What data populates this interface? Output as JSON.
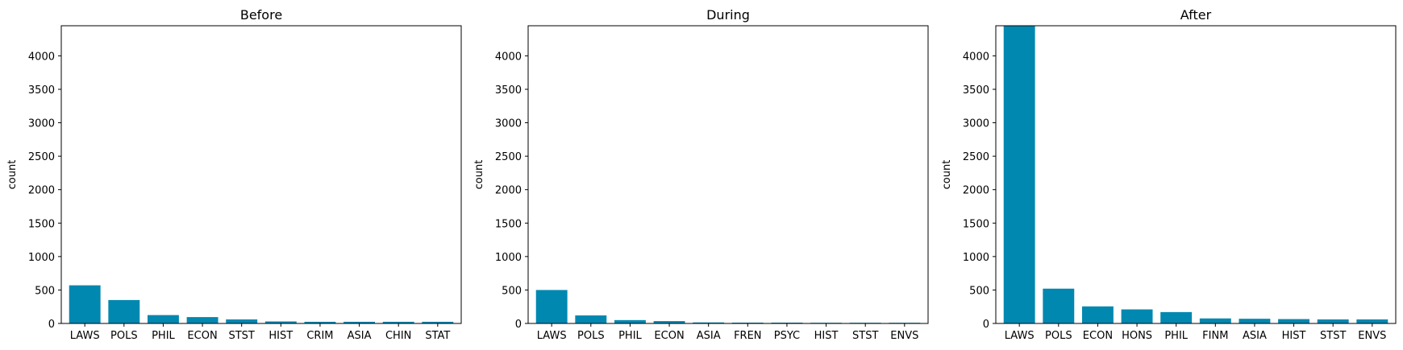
{
  "chart_data": [
    {
      "type": "bar",
      "title": "Before",
      "xlabel": "",
      "ylabel": "count",
      "ylim": [
        0,
        4450
      ],
      "yticks": [
        0,
        500,
        1000,
        1500,
        2000,
        2500,
        3000,
        3500,
        4000
      ],
      "categories": [
        "LAWS",
        "POLS",
        "PHIL",
        "ECON",
        "STST",
        "HIST",
        "CRIM",
        "ASIA",
        "CHIN",
        "STAT"
      ],
      "values": [
        570,
        350,
        125,
        95,
        60,
        30,
        25,
        25,
        25,
        25
      ],
      "bar_color": "#0088b0"
    },
    {
      "type": "bar",
      "title": "During",
      "xlabel": "",
      "ylabel": "count",
      "ylim": [
        0,
        4450
      ],
      "yticks": [
        0,
        500,
        1000,
        1500,
        2000,
        2500,
        3000,
        3500,
        4000
      ],
      "categories": [
        "LAWS",
        "POLS",
        "PHIL",
        "ECON",
        "ASIA",
        "FREN",
        "PSYC",
        "HIST",
        "STST",
        "ENVS"
      ],
      "values": [
        500,
        120,
        50,
        35,
        15,
        12,
        12,
        10,
        10,
        10
      ],
      "bar_color": "#0088b0"
    },
    {
      "type": "bar",
      "title": "After",
      "xlabel": "",
      "ylabel": "count",
      "ylim": [
        0,
        4450
      ],
      "yticks": [
        0,
        500,
        1000,
        1500,
        2000,
        2500,
        3000,
        3500,
        4000
      ],
      "categories": [
        "LAWS",
        "POLS",
        "ECON",
        "HONS",
        "PHIL",
        "FINM",
        "ASIA",
        "HIST",
        "STST",
        "ENVS"
      ],
      "values": [
        4450,
        520,
        255,
        210,
        170,
        75,
        70,
        65,
        60,
        60
      ],
      "bar_color": "#0088b0"
    }
  ]
}
